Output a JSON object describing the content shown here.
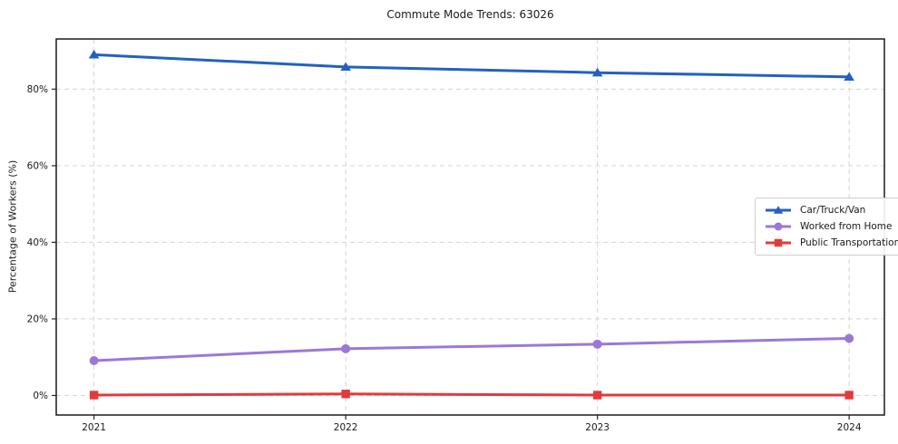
{
  "figure": {
    "background": "#ffffff",
    "spine_color": "#1a1a1a",
    "tick_color": "#262626",
    "text_color": "#1a1a1a"
  },
  "chart_data": {
    "type": "line",
    "title": "Commute Mode Trends: 63026",
    "xlabel": "",
    "ylabel": "Percentage of Workers (%)",
    "x": [
      2021,
      2022,
      2023,
      2024
    ],
    "xtick_labels": [
      "2021",
      "2022",
      "2023",
      "2024"
    ],
    "yticks": [
      0,
      20,
      40,
      60,
      80
    ],
    "ytick_labels": [
      "0%",
      "20%",
      "40%",
      "60%",
      "80%"
    ],
    "xlim": [
      2020.85,
      2024.14
    ],
    "ylim": [
      -5.1,
      93.1
    ],
    "grid": true,
    "grid_style": "dashed",
    "grid_color": "#d5d5d5",
    "legend_position": "center-right",
    "series": [
      {
        "name": "Car/Truck/Van",
        "color": "#2361c1",
        "marker": "triangle",
        "values": [
          89.0,
          85.8,
          84.3,
          83.2
        ]
      },
      {
        "name": "Worked from Home",
        "color": "#9b78d8",
        "marker": "circle",
        "values": [
          9.1,
          12.2,
          13.4,
          14.9
        ]
      },
      {
        "name": "Public Transportation",
        "color": "#e23b3c",
        "marker": "square",
        "values": [
          0.1,
          0.4,
          0.1,
          0.1
        ]
      }
    ]
  }
}
